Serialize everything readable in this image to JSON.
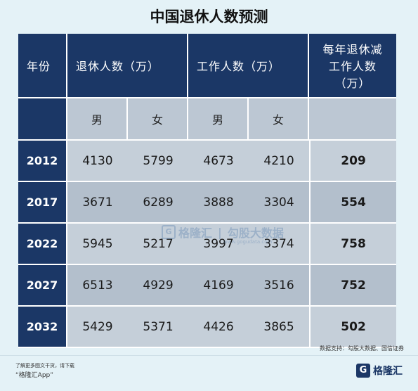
{
  "title": "中国退休人数预测",
  "header": {
    "year": "年份",
    "retired": "退休人数（万）",
    "working": "工作人数（万）",
    "ratio_line1": "每年退休减",
    "ratio_line2": "工作人数",
    "ratio_line3": "（万）"
  },
  "subheader": {
    "male1": "男",
    "female1": "女",
    "male2": "男",
    "female2": "女"
  },
  "rows": [
    {
      "year": "2012",
      "retired_m": "4130",
      "retired_f": "5799",
      "working_m": "4673",
      "working_f": "4210",
      "diff": "209"
    },
    {
      "year": "2017",
      "retired_m": "3671",
      "retired_f": "6289",
      "working_m": "3888",
      "working_f": "3304",
      "diff": "554"
    },
    {
      "year": "2022",
      "retired_m": "5945",
      "retired_f": "5217",
      "working_m": "3997",
      "working_f": "3374",
      "diff": "758"
    },
    {
      "year": "2027",
      "retired_m": "6513",
      "retired_f": "4929",
      "working_m": "4169",
      "working_f": "3516",
      "diff": "752"
    },
    {
      "year": "2032",
      "retired_m": "5429",
      "retired_f": "5371",
      "working_m": "4426",
      "working_f": "3865",
      "diff": "502"
    }
  ],
  "source": "数据支持：勾股大数据、国信证券",
  "watermark": {
    "brand": "格隆汇",
    "partner": "勾股大数据",
    "url": "www.gogudata.com"
  },
  "footer": {
    "note": "了解更多图文干货，请下载",
    "app": "“格隆汇App”",
    "logo_text": "格隆汇",
    "logo_icon": "G"
  }
}
